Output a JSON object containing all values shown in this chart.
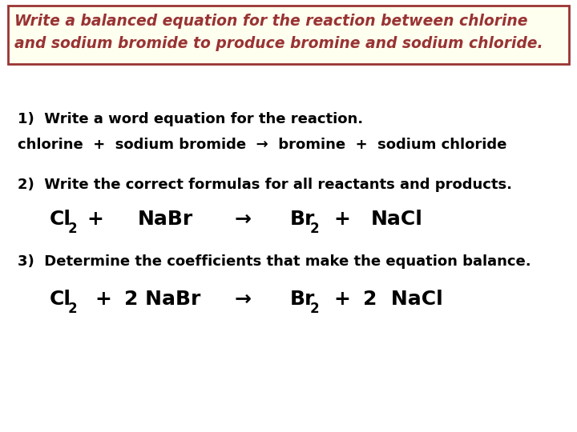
{
  "bg_color": "#ffffff",
  "box_bg_color": "#fffff0",
  "box_border_color": "#993333",
  "title_line1": "Write a balanced equation for the reaction between chlorine",
  "title_line2": "and sodium bromide to produce bromine and sodium chloride.",
  "title_color": "#993333",
  "body_color": "#000000",
  "step1_header": "1)  Write a word equation for the reaction.",
  "step1_eq": "chlorine  +  sodium bromide  →  bromine  +  sodium chloride",
  "step2_header": "2)  Write the correct formulas for all reactants and products.",
  "step3_header": "3)  Determine the coefficients that make the equation balance.",
  "arrow": "→",
  "title_fontsize": 13.5,
  "header_fontsize": 13,
  "eq_fontsize": 13,
  "chem_fontsize": 18,
  "sub_fontsize": 12
}
